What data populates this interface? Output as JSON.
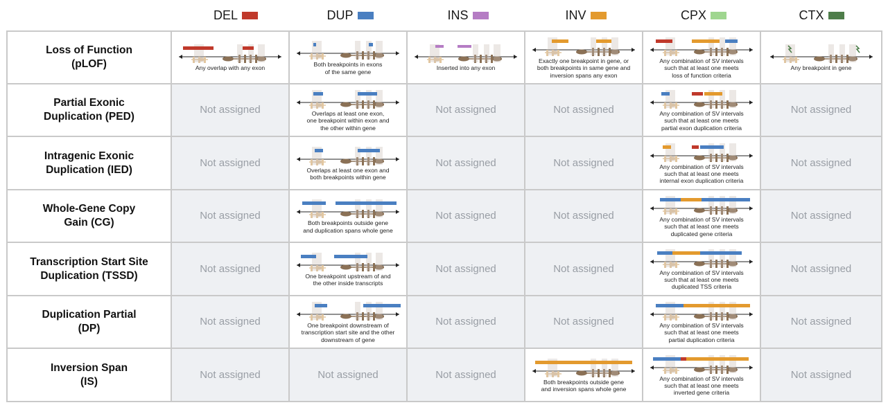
{
  "colors": {
    "DEL": "#c0392b",
    "DUP": "#4a7fc1",
    "INS": "#b57cc4",
    "INV": "#e39a2e",
    "CPX": "#9fd68f",
    "CTX": "#4e7d4a",
    "gene_light": "#e2c7a1",
    "gene_dark": "#8b7156",
    "na_bg": "#eef0f3",
    "na_text": "#999ea5"
  },
  "legend": [
    {
      "label": "DEL",
      "color": "#c0392b"
    },
    {
      "label": "DUP",
      "color": "#4a7fc1"
    },
    {
      "label": "INS",
      "color": "#b57cc4"
    },
    {
      "label": "INV",
      "color": "#e39a2e"
    },
    {
      "label": "CPX",
      "color": "#9fd68f"
    },
    {
      "label": "CTX",
      "color": "#4e7d4a"
    }
  ],
  "not_assigned": "Not assigned",
  "rows": [
    {
      "label": "Loss of Function\n(pLOF)",
      "cells": [
        {
          "type": "DEL",
          "caption": "Any overlap with any exon"
        },
        {
          "type": "DUP",
          "caption": "Both breakpoints in exons\nof the same gene"
        },
        {
          "type": "INS",
          "caption": "Inserted into any exon"
        },
        {
          "type": "INV",
          "caption": "Exactly one breakpoint in gene, or\nboth breakpoints in same gene and\ninversion spans any exon"
        },
        {
          "type": "CPX",
          "caption": "Any combination of SV intervals\nsuch that at least one meets\nloss of function criteria"
        },
        {
          "type": "CTX",
          "caption": "Any breakpoint in gene"
        }
      ]
    },
    {
      "label": "Partial Exonic\nDuplication (PED)",
      "cells": [
        null,
        {
          "type": "DUP",
          "caption": "Overlaps at least one exon,\none breakpoint within exon and\nthe other within gene"
        },
        null,
        null,
        {
          "type": "CPX",
          "caption": "Any combination of SV intervals\nsuch that at least one meets\npartial exon duplication criteria"
        },
        null
      ]
    },
    {
      "label": "Intragenic Exonic\nDuplication (IED)",
      "cells": [
        null,
        {
          "type": "DUP",
          "caption": "Overlaps at least one exon and\nboth breakpoints within gene"
        },
        null,
        null,
        {
          "type": "CPX",
          "caption": "Any combination of SV intervals\nsuch that at least one meets\ninternal exon duplication criteria"
        },
        null
      ]
    },
    {
      "label": "Whole-Gene Copy\nGain (CG)",
      "cells": [
        null,
        {
          "type": "DUP",
          "caption": "Both breakpoints outside gene\nand duplication spans whole gene"
        },
        null,
        null,
        {
          "type": "CPX",
          "caption": "Any combination of SV intervals\nsuch that at least one meets\nduplicated gene criteria"
        },
        null
      ]
    },
    {
      "label": "Transcription Start Site\nDuplication (TSSD)",
      "cells": [
        null,
        {
          "type": "DUP",
          "caption": "One breakpoint upstream of and\nthe other inside transcripts"
        },
        null,
        null,
        {
          "type": "CPX",
          "caption": "Any combination of SV intervals\nsuch that at least one meets\nduplicated TSS criteria"
        },
        null
      ]
    },
    {
      "label": "Duplication Partial\n(DP)",
      "cells": [
        null,
        {
          "type": "DUP",
          "caption": "One breakpoint downstream of\ntranscription start site and the other\ndownstream of gene"
        },
        null,
        null,
        {
          "type": "CPX",
          "caption": "Any combination of SV intervals\nsuch that at least one meets\npartial duplication criteria"
        },
        null
      ]
    },
    {
      "label": "Inversion Span\n(IS)",
      "cells": [
        null,
        null,
        null,
        {
          "type": "INV",
          "caption": "Both breakpoints outside gene\nand inversion spans whole gene"
        },
        {
          "type": "CPX",
          "caption": "Any combination of SV intervals\nsuch that at least one meets\ninverted gene criteria"
        },
        null
      ]
    }
  ]
}
